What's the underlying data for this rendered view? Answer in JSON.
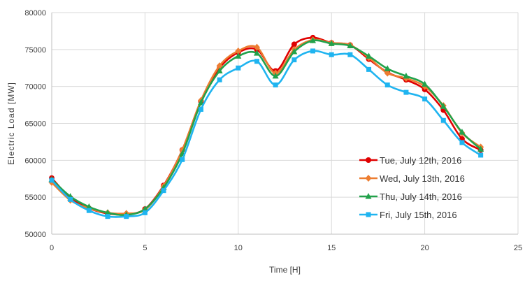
{
  "chart_data": {
    "type": "line",
    "xlabel": "Time [H]",
    "ylabel": "Electric Load [MW]",
    "xlim": [
      0,
      25
    ],
    "ylim": [
      50000,
      80000
    ],
    "xticks": [
      0,
      5,
      10,
      15,
      20,
      25
    ],
    "yticks": [
      50000,
      55000,
      60000,
      65000,
      70000,
      75000,
      80000
    ],
    "grid": true,
    "legend_position": "bottom-right",
    "x": [
      0,
      1,
      2,
      3,
      4,
      5,
      6,
      7,
      8,
      9,
      10,
      11,
      12,
      13,
      14,
      15,
      16,
      17,
      18,
      19,
      20,
      21,
      22,
      23
    ],
    "series": [
      {
        "name": "Tue, July 12th, 2016",
        "color": "#e00000",
        "marker": "circle",
        "values": [
          57600,
          54900,
          53500,
          52800,
          52700,
          53400,
          56600,
          61400,
          68000,
          72500,
          74600,
          75000,
          72100,
          75700,
          76600,
          75900,
          75600,
          73700,
          71900,
          70900,
          69600,
          66800,
          62900,
          61400
        ]
      },
      {
        "name": "Wed, July 13th, 2016",
        "color": "#ed7d31",
        "marker": "diamond",
        "values": [
          57000,
          54600,
          53500,
          52900,
          52800,
          53300,
          56500,
          61400,
          68100,
          72800,
          74800,
          75300,
          71800,
          75000,
          76300,
          75900,
          75600,
          73900,
          71800,
          71100,
          70000,
          67400,
          63700,
          61800
        ]
      },
      {
        "name": "Thu, July 14th, 2016",
        "color": "#22a24b",
        "marker": "triangle",
        "values": [
          57400,
          55100,
          53700,
          52900,
          52600,
          53400,
          56300,
          60900,
          67800,
          72100,
          74100,
          74500,
          71400,
          74700,
          76200,
          75800,
          75500,
          74100,
          72400,
          71400,
          70300,
          67300,
          63800,
          61500
        ]
      },
      {
        "name": "Fri, July 15th, 2016",
        "color": "#1fb4f0",
        "marker": "square",
        "values": [
          57300,
          54700,
          53200,
          52400,
          52400,
          52900,
          55900,
          60100,
          66900,
          70900,
          72500,
          73400,
          70200,
          73600,
          74800,
          74300,
          74300,
          72300,
          70200,
          69200,
          68300,
          65400,
          62400,
          60700
        ]
      }
    ]
  }
}
